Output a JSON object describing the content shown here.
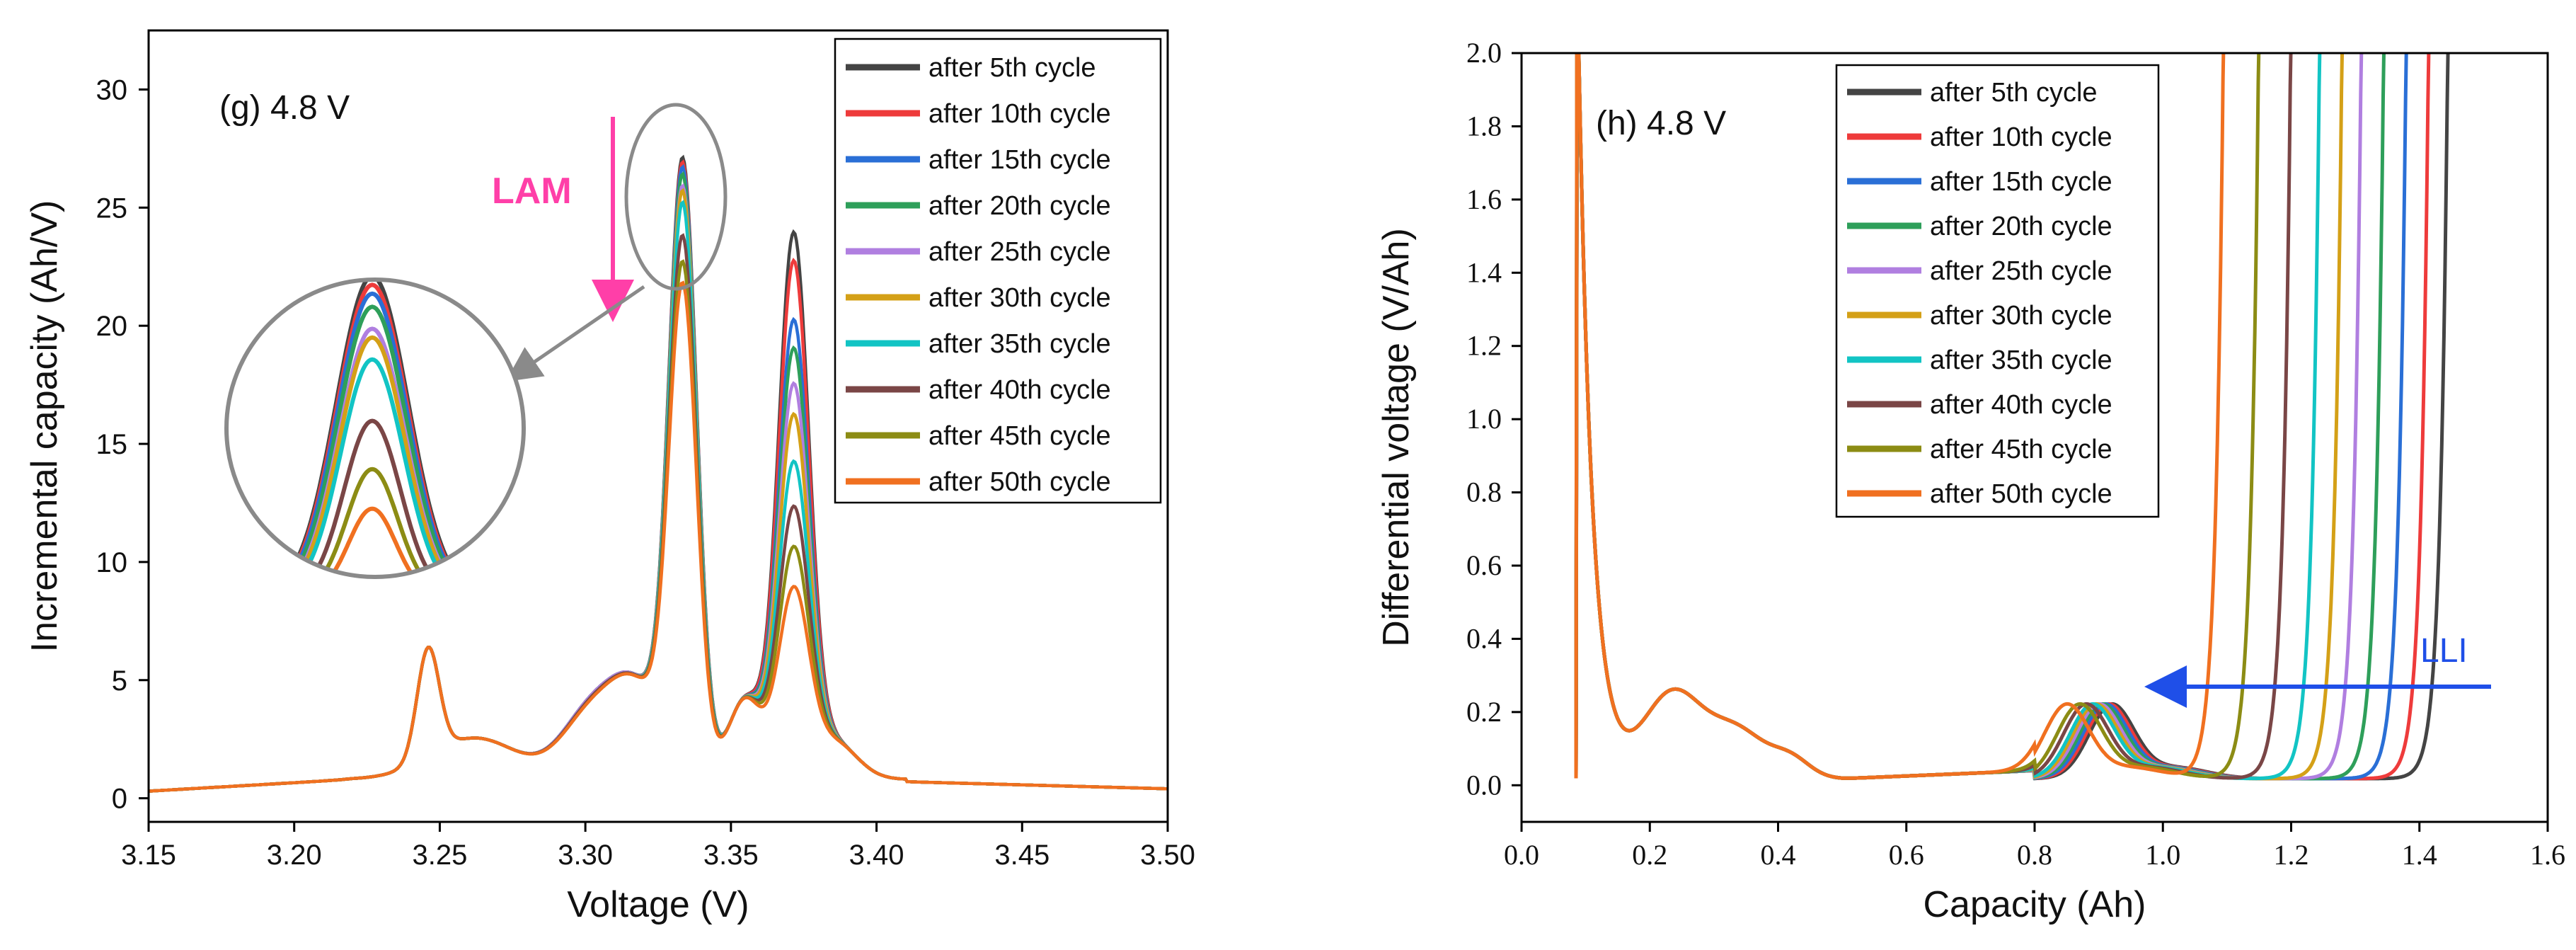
{
  "chart_data": [
    {
      "id": "g",
      "type": "line",
      "title": "(g) 4.8 V",
      "xlabel": "Voltage (V)",
      "ylabel": "Incremental capacity (Ah/V)",
      "xlim": [
        3.15,
        3.5
      ],
      "ylim": [
        -1,
        32.5
      ],
      "xticks": [
        3.15,
        3.2,
        3.25,
        3.3,
        3.35,
        3.4,
        3.45,
        3.5
      ],
      "xtick_labels": [
        "3.15",
        "3.20",
        "3.25",
        "3.30",
        "3.35",
        "3.40",
        "3.45",
        "3.50"
      ],
      "yticks": [
        0,
        5,
        10,
        15,
        20,
        25,
        30
      ],
      "ytick_labels": [
        "0",
        "5",
        "10",
        "15",
        "20",
        "25",
        "30"
      ],
      "annotation": "LAM",
      "legend_position": "top-right",
      "series": [
        {
          "name": "after 5th cycle",
          "color": "#444444",
          "peak_330": 3.5,
          "peak_333": 28.0,
          "peak_337": 24.2
        },
        {
          "name": "after 10th cycle",
          "color": "#ee3b3b",
          "peak_330": 3.5,
          "peak_333": 27.8,
          "peak_337": 23.0
        },
        {
          "name": "after 15th cycle",
          "color": "#2a6fd6",
          "peak_330": 3.5,
          "peak_333": 27.6,
          "peak_337": 20.5
        },
        {
          "name": "after 20th cycle",
          "color": "#2e9f5a",
          "peak_330": 3.5,
          "peak_333": 27.3,
          "peak_337": 19.3
        },
        {
          "name": "after 25th cycle",
          "color": "#b07fe0",
          "peak_330": 3.5,
          "peak_333": 26.8,
          "peak_337": 17.8
        },
        {
          "name": "after 30th cycle",
          "color": "#d4a017",
          "peak_330": 3.4,
          "peak_333": 26.6,
          "peak_337": 16.5
        },
        {
          "name": "after 35th cycle",
          "color": "#12c4c4",
          "peak_330": 3.4,
          "peak_333": 26.1,
          "peak_337": 14.5
        },
        {
          "name": "after 40th cycle",
          "color": "#7a4646",
          "peak_330": 3.4,
          "peak_333": 24.7,
          "peak_337": 12.6
        },
        {
          "name": "after 45th cycle",
          "color": "#8c8c14",
          "peak_330": 3.3,
          "peak_333": 23.6,
          "peak_337": 10.9
        },
        {
          "name": "after 50th cycle",
          "color": "#f07020",
          "peak_330": 3.3,
          "peak_333": 22.7,
          "peak_337": 9.2
        }
      ]
    },
    {
      "id": "h",
      "type": "line",
      "title": "(h) 4.8 V",
      "xlabel": "Capacity (Ah)",
      "ylabel": "Differential voltage (V/Ah)",
      "xlim": [
        0.0,
        1.6
      ],
      "ylim": [
        -0.1,
        2.0
      ],
      "xticks": [
        0.0,
        0.2,
        0.4,
        0.6,
        0.8,
        1.0,
        1.2,
        1.4,
        1.6
      ],
      "xtick_labels": [
        "0.0",
        "0.2",
        "0.4",
        "0.6",
        "0.8",
        "1.0",
        "1.2",
        "1.4",
        "1.6"
      ],
      "yticks": [
        0.0,
        0.2,
        0.4,
        0.6,
        0.8,
        1.0,
        1.2,
        1.4,
        1.6,
        1.8,
        2.0
      ],
      "ytick_labels": [
        "0.0",
        "0.2",
        "0.4",
        "0.6",
        "0.8",
        "1.0",
        "1.2",
        "1.4",
        "1.6",
        "1.8",
        "2.0"
      ],
      "annotation": "LLI",
      "legend_position": "top-left",
      "series": [
        {
          "name": "after 5th cycle",
          "color": "#444444",
          "end_capacity": 1.4,
          "peak2_x": 0.92
        },
        {
          "name": "after 10th cycle",
          "color": "#ee3b3b",
          "end_capacity": 1.37,
          "peak2_x": 0.915
        },
        {
          "name": "after 15th cycle",
          "color": "#2a6fd6",
          "end_capacity": 1.335,
          "peak2_x": 0.91
        },
        {
          "name": "after 20th cycle",
          "color": "#2e9f5a",
          "end_capacity": 1.3,
          "peak2_x": 0.905
        },
        {
          "name": "after 25th cycle",
          "color": "#b07fe0",
          "end_capacity": 1.265,
          "peak2_x": 0.9
        },
        {
          "name": "after 30th cycle",
          "color": "#d4a017",
          "end_capacity": 1.235,
          "peak2_x": 0.895
        },
        {
          "name": "after 35th cycle",
          "color": "#12c4c4",
          "end_capacity": 1.2,
          "peak2_x": 0.89
        },
        {
          "name": "after 40th cycle",
          "color": "#7a4646",
          "end_capacity": 1.155,
          "peak2_x": 0.88
        },
        {
          "name": "after 45th cycle",
          "color": "#8c8c14",
          "end_capacity": 1.105,
          "peak2_x": 0.87
        },
        {
          "name": "after 50th cycle",
          "color": "#f07020",
          "end_capacity": 1.05,
          "peak2_x": 0.85
        }
      ]
    }
  ]
}
